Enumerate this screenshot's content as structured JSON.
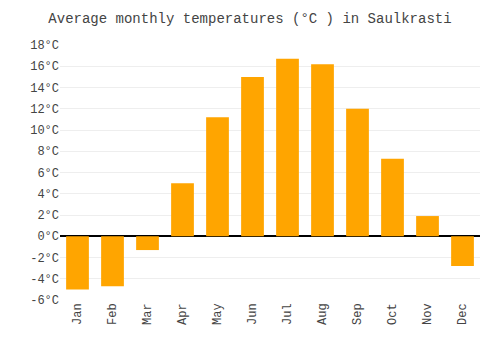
{
  "chart_data": {
    "type": "bar",
    "title": "Average monthly temperatures (°C ) in Saulkrasti",
    "categories": [
      "Jan",
      "Feb",
      "Mar",
      "Apr",
      "May",
      "Jun",
      "Jul",
      "Aug",
      "Sep",
      "Oct",
      "Nov",
      "Dec"
    ],
    "values": [
      -5.0,
      -4.7,
      -1.3,
      5.0,
      11.2,
      15.0,
      16.7,
      16.2,
      12.0,
      7.3,
      1.9,
      -2.8
    ],
    "color": "#FFA500",
    "ylim": [
      -6,
      18
    ],
    "yticks": [
      {
        "value": -6,
        "label": "-6°C"
      },
      {
        "value": -4,
        "label": "-4°C"
      },
      {
        "value": -2,
        "label": "-2°C"
      },
      {
        "value": 0,
        "label": "0°C"
      },
      {
        "value": 2,
        "label": "2°C"
      },
      {
        "value": 4,
        "label": "4°C"
      },
      {
        "value": 6,
        "label": "6°C"
      },
      {
        "value": 8,
        "label": "8°C"
      },
      {
        "value": 10,
        "label": "10°C"
      },
      {
        "value": 12,
        "label": "12°C"
      },
      {
        "value": 14,
        "label": "14°C"
      },
      {
        "value": 16,
        "label": "16°C"
      },
      {
        "value": 18,
        "label": "18°C"
      }
    ],
    "grid": true
  }
}
